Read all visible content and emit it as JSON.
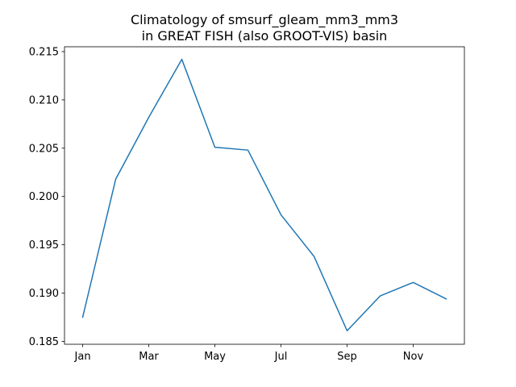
{
  "chart_data": {
    "type": "line",
    "title": [
      "Climatology of smsurf_gleam_mm3_mm3",
      "in GREAT FISH (also GROOT-VIS) basin"
    ],
    "xlabel": "",
    "ylabel": "",
    "x_tick_labels": [
      "Jan",
      "Mar",
      "May",
      "Jul",
      "Sep",
      "Nov"
    ],
    "x_tick_months": [
      1,
      3,
      5,
      7,
      9,
      11
    ],
    "y_tick_labels": [
      "0.185",
      "0.190",
      "0.195",
      "0.200",
      "0.205",
      "0.210",
      "0.215"
    ],
    "y_ticks": [
      0.185,
      0.19,
      0.195,
      0.2,
      0.205,
      0.21,
      0.215
    ],
    "xlim": [
      0.45,
      12.55
    ],
    "ylim": [
      0.1847,
      0.2155
    ],
    "grid": false,
    "legend": "none",
    "series": [
      {
        "color": "#1f77b4",
        "x": [
          1,
          2,
          3,
          4,
          5,
          6,
          7,
          8,
          9,
          10,
          11,
          12
        ],
        "values": [
          0.1875,
          0.2018,
          0.2082,
          0.2142,
          0.2051,
          0.2048,
          0.1981,
          0.1938,
          0.1861,
          0.1897,
          0.1911,
          0.1894
        ]
      }
    ]
  }
}
